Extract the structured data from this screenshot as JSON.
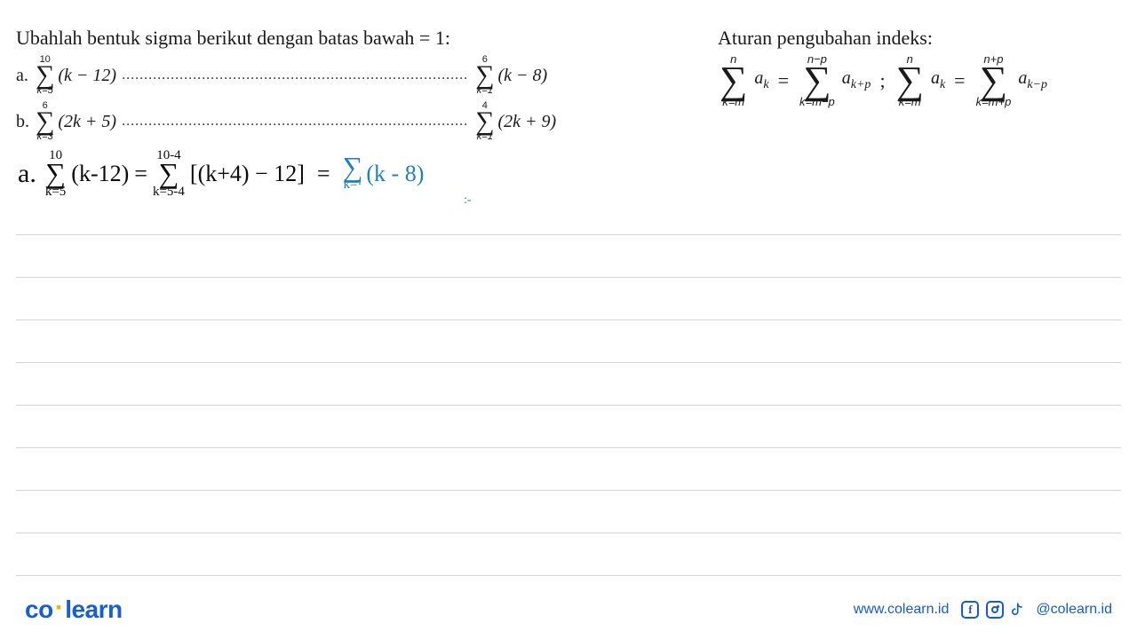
{
  "prompt": "Ubahlah bentuk sigma berikut dengan batas bawah = 1:",
  "problems": {
    "a": {
      "label": "a.",
      "left": {
        "upper": "10",
        "lower": "k=5",
        "term": "(k − 12)"
      },
      "right": {
        "upper": "6",
        "lower": "k=1",
        "term": "(k − 8)"
      }
    },
    "b": {
      "label": "b.",
      "left": {
        "upper": "6",
        "lower": "k=3",
        "term": "(2k + 5)"
      },
      "right": {
        "upper": "4",
        "lower": "k=1",
        "term": "(2k + 9)"
      }
    }
  },
  "dots": "..............................................................................",
  "rule": {
    "title": "Aturan pengubahan indeks:",
    "s1": {
      "upper": "n",
      "lower": "k=m",
      "a": "a",
      "sub": "k"
    },
    "s2": {
      "upper": "n−p",
      "lower": "k=m−p",
      "a": "a",
      "sub": "k+p"
    },
    "s3": {
      "upper": "n",
      "lower": "k=m",
      "a": "a",
      "sub": "k"
    },
    "s4": {
      "upper": "n+p",
      "lower": "k=m+p",
      "a": "a",
      "sub": "k−p"
    },
    "sep": ";"
  },
  "handwritten": {
    "label": "a.",
    "s1": {
      "upper": "10",
      "lower": "k=5",
      "term": "(k-12)"
    },
    "eq1": "=",
    "s2": {
      "upper": "10-4",
      "lower": "k=5-4",
      "term": "[(k+4) − 12]"
    },
    "eq2": "=",
    "s3": {
      "upper": "",
      "lower": "k=·",
      "term": "(k - 8)"
    },
    "extra_mark": ":-"
  },
  "lines": {
    "count": 9,
    "start_y": 0,
    "spacing": 48,
    "color": "#d4d4d4"
  },
  "footer": {
    "logo_co": "co",
    "logo_dot": "·",
    "logo_learn": "learn",
    "url": "www.colearn.id",
    "handle": "@colearn.id",
    "brand_color": "#1560d4"
  }
}
